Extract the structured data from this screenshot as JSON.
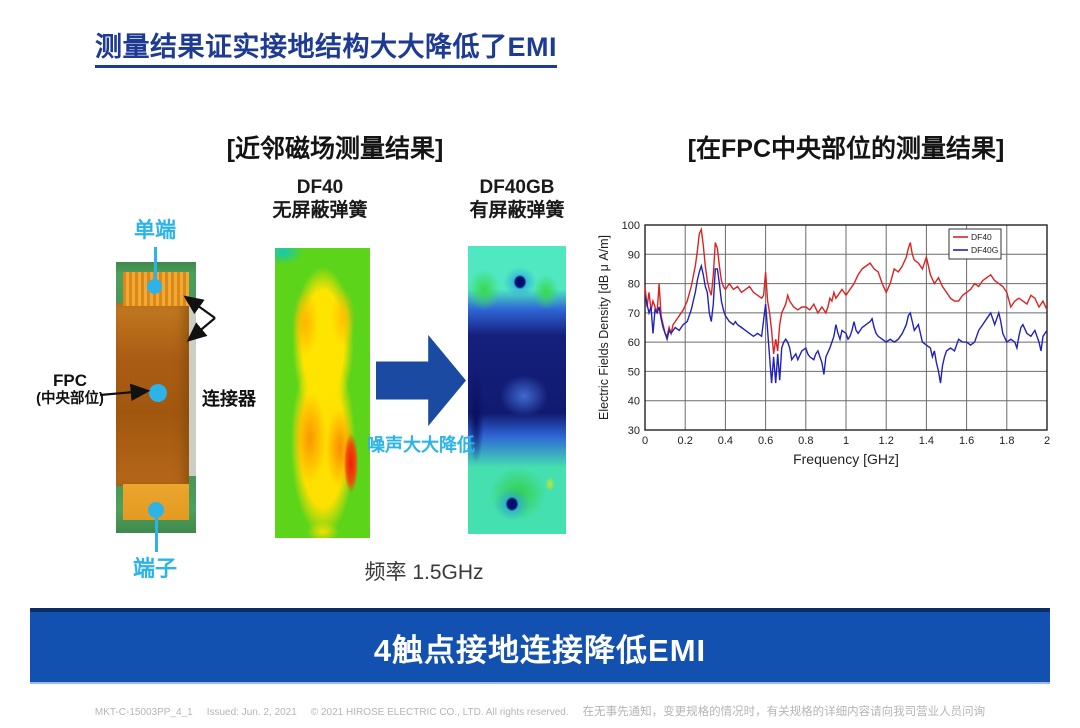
{
  "title": "测量结果证实接地结构大大降低了EMI",
  "left_panel": {
    "header": "[近邻磁场测量结果]",
    "photo_labels": {
      "top": "单端",
      "fpc_line1": "FPC",
      "fpc_line2": "(中央部位)",
      "connector": "连接器",
      "bottom": "端子"
    },
    "heatmap1_label_line1": "DF40",
    "heatmap1_label_line2": "无屏蔽弹簧",
    "heatmap2_label_line1": "DF40GB",
    "heatmap2_label_line2": "有屏蔽弹簧",
    "arrow_caption": "噪声大大降低",
    "frequency_note": "频率 1.5GHz"
  },
  "right_panel": {
    "header": "[在FPC中央部位的测量结果]"
  },
  "banner": {
    "text": "4触点接地连接降低EMI"
  },
  "footer": {
    "doc_id": "MKT-C-15003PP_4_1",
    "issued": "Issued: Jun. 2, 2021",
    "copyright": "© 2021 HIROSE ELECTRIC CO., LTD. All rights reserved.",
    "note_cn": "在无事先通知，变更规格的情况时，有关规格的详细内容请向我司营业人员问询"
  },
  "colors": {
    "title_blue": "#1d3a94",
    "cyan_label": "#2cb4e8",
    "banner_blue": "#1351b0",
    "arrow_blue": "#1b4aa3",
    "series_df40": "#dd2222",
    "series_df40g": "#2222bb"
  },
  "chart_data": {
    "type": "line",
    "title": "",
    "xlabel": "Frequency [GHz]",
    "ylabel": "Electric Fields Density [dB μ A/m]",
    "xlim": [
      0,
      2
    ],
    "ylim": [
      30,
      100
    ],
    "xticks": [
      0,
      0.2,
      0.4,
      0.6,
      0.8,
      1,
      1.2,
      1.4,
      1.6,
      1.8,
      2
    ],
    "xtick_labels": [
      "0",
      "0.2",
      "0.4",
      "0.6",
      "0.8",
      "1",
      "1.2",
      "1.4",
      "1.6",
      "1.8",
      "2"
    ],
    "yticks": [
      30,
      40,
      50,
      60,
      70,
      80,
      90,
      100
    ],
    "grid": true,
    "legend_position": "top-right",
    "series": [
      {
        "name": "DF40",
        "color": "#dd2222",
        "points": [
          [
            0,
            79
          ],
          [
            0.01,
            72
          ],
          [
            0.02,
            77
          ],
          [
            0.03,
            71
          ],
          [
            0.04,
            74
          ],
          [
            0.05,
            72
          ],
          [
            0.06,
            70
          ],
          [
            0.07,
            80
          ],
          [
            0.08,
            69
          ],
          [
            0.09,
            66
          ],
          [
            0.1,
            63
          ],
          [
            0.11,
            62
          ],
          [
            0.12,
            65
          ],
          [
            0.13,
            63
          ],
          [
            0.14,
            66
          ],
          [
            0.15,
            67
          ],
          [
            0.17,
            69
          ],
          [
            0.19,
            71
          ],
          [
            0.21,
            74
          ],
          [
            0.23,
            79
          ],
          [
            0.25,
            86
          ],
          [
            0.26,
            91
          ],
          [
            0.27,
            97
          ],
          [
            0.28,
            98.5
          ],
          [
            0.29,
            93
          ],
          [
            0.3,
            86
          ],
          [
            0.31,
            81
          ],
          [
            0.32,
            78
          ],
          [
            0.33,
            76
          ],
          [
            0.34,
            83
          ],
          [
            0.35,
            94
          ],
          [
            0.36,
            92
          ],
          [
            0.37,
            86
          ],
          [
            0.38,
            81
          ],
          [
            0.39,
            79
          ],
          [
            0.4,
            78
          ],
          [
            0.42,
            80
          ],
          [
            0.44,
            78
          ],
          [
            0.46,
            79
          ],
          [
            0.48,
            77
          ],
          [
            0.5,
            78
          ],
          [
            0.52,
            79
          ],
          [
            0.54,
            77
          ],
          [
            0.56,
            76
          ],
          [
            0.58,
            75
          ],
          [
            0.59,
            76
          ],
          [
            0.6,
            84
          ],
          [
            0.61,
            74
          ],
          [
            0.62,
            70
          ],
          [
            0.63,
            64
          ],
          [
            0.64,
            56
          ],
          [
            0.65,
            61
          ],
          [
            0.66,
            57
          ],
          [
            0.67,
            66
          ],
          [
            0.68,
            70
          ],
          [
            0.7,
            73
          ],
          [
            0.71,
            76
          ],
          [
            0.72,
            74
          ],
          [
            0.74,
            72
          ],
          [
            0.76,
            71
          ],
          [
            0.78,
            72
          ],
          [
            0.8,
            72
          ],
          [
            0.82,
            71
          ],
          [
            0.84,
            73
          ],
          [
            0.86,
            70
          ],
          [
            0.88,
            72
          ],
          [
            0.9,
            70
          ],
          [
            0.91,
            72
          ],
          [
            0.92,
            75
          ],
          [
            0.93,
            74
          ],
          [
            0.94,
            77
          ],
          [
            0.95,
            75
          ],
          [
            0.96,
            76
          ],
          [
            0.98,
            78
          ],
          [
            1,
            76
          ],
          [
            1.02,
            78
          ],
          [
            1.04,
            80
          ],
          [
            1.06,
            83
          ],
          [
            1.08,
            85
          ],
          [
            1.1,
            86
          ],
          [
            1.12,
            87
          ],
          [
            1.14,
            85
          ],
          [
            1.16,
            84
          ],
          [
            1.18,
            80
          ],
          [
            1.2,
            77
          ],
          [
            1.22,
            80
          ],
          [
            1.24,
            85
          ],
          [
            1.26,
            84
          ],
          [
            1.28,
            86
          ],
          [
            1.3,
            89
          ],
          [
            1.31,
            92
          ],
          [
            1.32,
            94
          ],
          [
            1.33,
            90
          ],
          [
            1.34,
            88
          ],
          [
            1.36,
            87
          ],
          [
            1.38,
            85
          ],
          [
            1.4,
            89
          ],
          [
            1.42,
            83
          ],
          [
            1.44,
            80
          ],
          [
            1.46,
            82
          ],
          [
            1.48,
            79
          ],
          [
            1.5,
            77
          ],
          [
            1.52,
            75
          ],
          [
            1.54,
            74
          ],
          [
            1.56,
            74
          ],
          [
            1.58,
            76
          ],
          [
            1.6,
            77
          ],
          [
            1.62,
            78
          ],
          [
            1.64,
            80
          ],
          [
            1.66,
            79
          ],
          [
            1.68,
            81
          ],
          [
            1.7,
            82
          ],
          [
            1.72,
            83
          ],
          [
            1.74,
            81
          ],
          [
            1.76,
            80
          ],
          [
            1.78,
            79
          ],
          [
            1.8,
            77
          ],
          [
            1.82,
            72
          ],
          [
            1.84,
            74
          ],
          [
            1.86,
            75
          ],
          [
            1.88,
            74
          ],
          [
            1.9,
            73
          ],
          [
            1.92,
            76
          ],
          [
            1.94,
            75
          ],
          [
            1.96,
            72
          ],
          [
            1.98,
            74
          ],
          [
            2,
            71
          ]
        ]
      },
      {
        "name": "DF40G",
        "color": "#2222bb",
        "points": [
          [
            0,
            76
          ],
          [
            0.01,
            73
          ],
          [
            0.02,
            70
          ],
          [
            0.03,
            72
          ],
          [
            0.04,
            63
          ],
          [
            0.05,
            71
          ],
          [
            0.06,
            70
          ],
          [
            0.07,
            72
          ],
          [
            0.08,
            68
          ],
          [
            0.09,
            65
          ],
          [
            0.1,
            63
          ],
          [
            0.11,
            61
          ],
          [
            0.12,
            64
          ],
          [
            0.13,
            63
          ],
          [
            0.14,
            64
          ],
          [
            0.15,
            65
          ],
          [
            0.17,
            64
          ],
          [
            0.19,
            66
          ],
          [
            0.21,
            67
          ],
          [
            0.23,
            71
          ],
          [
            0.25,
            77
          ],
          [
            0.26,
            81
          ],
          [
            0.27,
            84
          ],
          [
            0.28,
            86
          ],
          [
            0.29,
            83
          ],
          [
            0.3,
            79
          ],
          [
            0.31,
            77
          ],
          [
            0.32,
            70
          ],
          [
            0.33,
            67
          ],
          [
            0.34,
            73
          ],
          [
            0.35,
            85
          ],
          [
            0.36,
            85
          ],
          [
            0.37,
            80
          ],
          [
            0.38,
            74
          ],
          [
            0.39,
            71
          ],
          [
            0.4,
            69
          ],
          [
            0.42,
            67
          ],
          [
            0.44,
            66
          ],
          [
            0.45,
            67
          ],
          [
            0.46,
            66
          ],
          [
            0.48,
            65
          ],
          [
            0.5,
            64
          ],
          [
            0.52,
            63
          ],
          [
            0.54,
            62
          ],
          [
            0.56,
            63
          ],
          [
            0.58,
            62
          ],
          [
            0.6,
            73
          ],
          [
            0.61,
            64
          ],
          [
            0.62,
            55
          ],
          [
            0.63,
            46
          ],
          [
            0.64,
            55
          ],
          [
            0.65,
            46
          ],
          [
            0.66,
            56
          ],
          [
            0.67,
            47
          ],
          [
            0.68,
            58
          ],
          [
            0.69,
            60
          ],
          [
            0.7,
            61
          ],
          [
            0.71,
            60
          ],
          [
            0.72,
            58
          ],
          [
            0.73,
            54
          ],
          [
            0.74,
            55
          ],
          [
            0.75,
            56
          ],
          [
            0.76,
            54
          ],
          [
            0.78,
            57
          ],
          [
            0.8,
            58
          ],
          [
            0.81,
            56
          ],
          [
            0.82,
            55
          ],
          [
            0.84,
            54
          ],
          [
            0.85,
            56
          ],
          [
            0.86,
            57
          ],
          [
            0.88,
            53
          ],
          [
            0.89,
            49
          ],
          [
            0.9,
            55
          ],
          [
            0.92,
            58
          ],
          [
            0.93,
            60
          ],
          [
            0.94,
            62
          ],
          [
            0.95,
            66
          ],
          [
            0.96,
            63
          ],
          [
            0.97,
            61
          ],
          [
            0.98,
            64
          ],
          [
            1,
            63
          ],
          [
            1.01,
            61
          ],
          [
            1.02,
            62
          ],
          [
            1.03,
            64
          ],
          [
            1.04,
            67
          ],
          [
            1.05,
            64
          ],
          [
            1.06,
            63
          ],
          [
            1.08,
            65
          ],
          [
            1.1,
            66
          ],
          [
            1.12,
            67
          ],
          [
            1.13,
            68
          ],
          [
            1.14,
            65
          ],
          [
            1.15,
            63
          ],
          [
            1.16,
            62
          ],
          [
            1.18,
            61
          ],
          [
            1.2,
            60
          ],
          [
            1.22,
            61
          ],
          [
            1.24,
            60
          ],
          [
            1.26,
            61
          ],
          [
            1.28,
            63
          ],
          [
            1.3,
            66
          ],
          [
            1.31,
            69
          ],
          [
            1.32,
            70
          ],
          [
            1.33,
            67
          ],
          [
            1.34,
            64
          ],
          [
            1.36,
            66
          ],
          [
            1.38,
            60
          ],
          [
            1.4,
            59
          ],
          [
            1.42,
            58
          ],
          [
            1.43,
            55
          ],
          [
            1.44,
            57
          ],
          [
            1.45,
            53
          ],
          [
            1.46,
            50
          ],
          [
            1.47,
            46
          ],
          [
            1.48,
            52
          ],
          [
            1.49,
            55
          ],
          [
            1.5,
            57
          ],
          [
            1.52,
            58
          ],
          [
            1.54,
            57
          ],
          [
            1.56,
            61
          ],
          [
            1.58,
            60
          ],
          [
            1.6,
            60
          ],
          [
            1.62,
            59
          ],
          [
            1.64,
            60
          ],
          [
            1.66,
            64
          ],
          [
            1.68,
            66
          ],
          [
            1.7,
            68
          ],
          [
            1.71,
            69
          ],
          [
            1.72,
            70
          ],
          [
            1.74,
            66
          ],
          [
            1.76,
            70
          ],
          [
            1.77,
            67
          ],
          [
            1.78,
            63
          ],
          [
            1.8,
            60
          ],
          [
            1.82,
            61
          ],
          [
            1.84,
            60
          ],
          [
            1.85,
            58
          ],
          [
            1.86,
            62
          ],
          [
            1.87,
            65
          ],
          [
            1.88,
            66
          ],
          [
            1.9,
            63
          ],
          [
            1.92,
            62
          ],
          [
            1.94,
            64
          ],
          [
            1.96,
            60
          ],
          [
            1.97,
            57
          ],
          [
            1.98,
            62
          ],
          [
            2,
            64
          ]
        ]
      }
    ]
  }
}
